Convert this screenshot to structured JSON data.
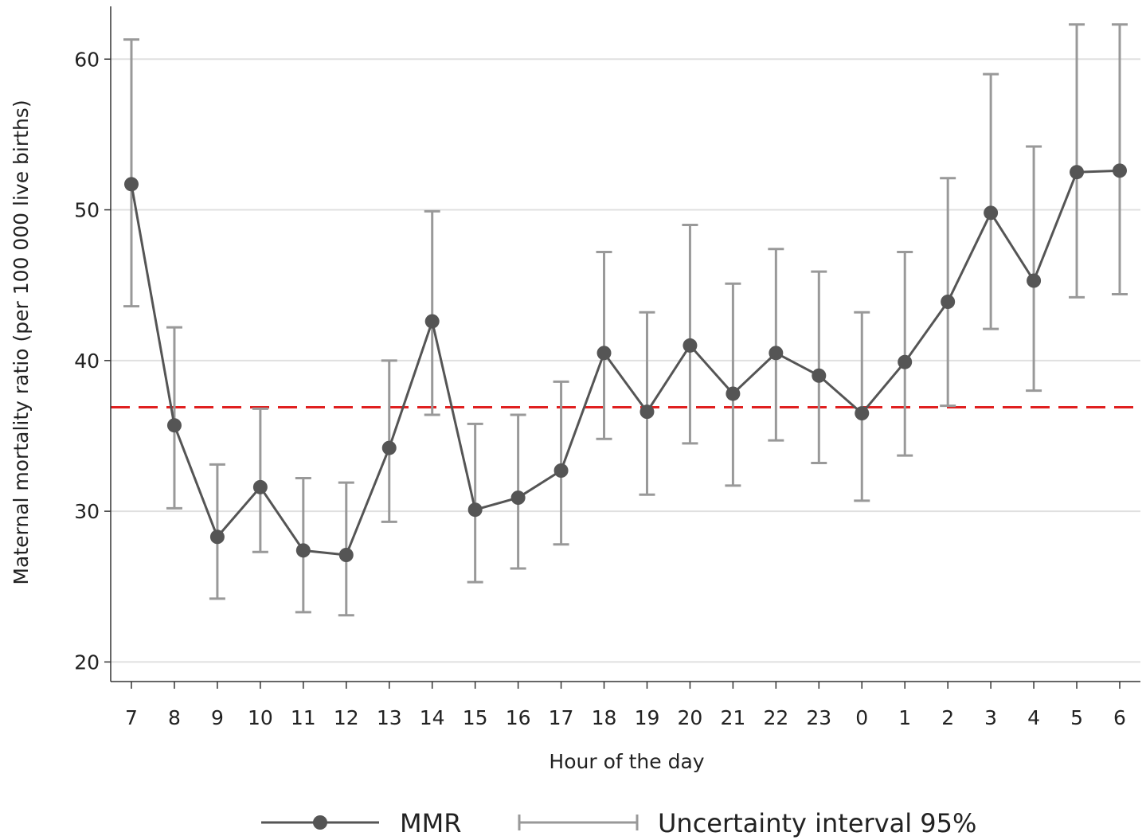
{
  "chart_data": {
    "type": "line",
    "categories": [
      "7",
      "8",
      "9",
      "10",
      "11",
      "12",
      "13",
      "14",
      "15",
      "16",
      "17",
      "18",
      "19",
      "20",
      "21",
      "22",
      "23",
      "0",
      "1",
      "2",
      "3",
      "4",
      "5",
      "6"
    ],
    "series": [
      {
        "name": "MMR",
        "values": [
          51.7,
          35.7,
          28.3,
          31.6,
          27.4,
          27.1,
          34.2,
          42.6,
          30.1,
          30.9,
          32.7,
          40.5,
          36.6,
          41.0,
          37.8,
          40.5,
          39.0,
          36.5,
          39.9,
          43.9,
          49.8,
          45.3,
          52.5,
          52.6
        ],
        "color": "#555555"
      }
    ],
    "intervals": {
      "name": "Uncertainty interval 95%",
      "lower": [
        43.6,
        30.2,
        24.2,
        27.3,
        23.3,
        23.1,
        29.3,
        36.4,
        25.3,
        26.2,
        27.8,
        34.8,
        31.1,
        34.5,
        31.7,
        34.7,
        33.2,
        30.7,
        33.7,
        37.0,
        42.1,
        38.0,
        44.2,
        44.4
      ],
      "upper": [
        61.3,
        42.2,
        33.1,
        36.8,
        32.2,
        31.9,
        40.0,
        49.9,
        35.8,
        36.4,
        38.6,
        47.2,
        43.2,
        49.0,
        45.1,
        47.4,
        45.9,
        43.2,
        47.2,
        52.1,
        59.0,
        54.2,
        62.3,
        62.3
      ],
      "color": "#999999"
    },
    "reference_line": {
      "value": 36.9,
      "color": "#e02020",
      "style": "dashed"
    },
    "xlabel": "Hour of the day",
    "ylabel": "Maternal mortality ratio (per 100 000 live births)",
    "ylim": [
      18.7,
      63.5
    ],
    "yticks": [
      20,
      30,
      40,
      50,
      60
    ],
    "grid": true,
    "gridline_color": "#e0e0e0",
    "legend": {
      "placement": "bottom"
    }
  }
}
